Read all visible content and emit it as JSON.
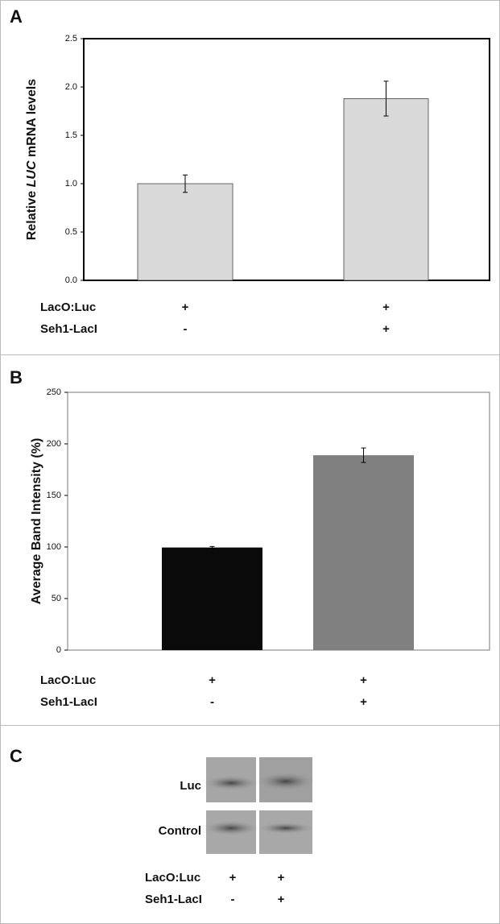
{
  "chart_data": [
    {
      "type": "bar",
      "panel": "A",
      "y_label": [
        "Relative ",
        "LUC",
        " mRNA levels"
      ],
      "values": [
        1.0,
        1.88
      ],
      "errors": [
        0.09,
        0.18
      ],
      "colors": [
        "#d9d9d9",
        "#d9d9d9"
      ],
      "ylim": [
        0,
        2.5
      ],
      "yticks": [
        {
          "value": 0,
          "label": "0.0"
        },
        0.5,
        {
          "value": 1,
          "label": "1.0"
        },
        1.5,
        {
          "value": 2,
          "label": "2.0"
        },
        2.5
      ],
      "conditions": [
        {
          "name": "LacO:Luc",
          "values": [
            "+",
            "+"
          ]
        },
        {
          "name": "Seh1-LacI",
          "values": [
            "-",
            "+"
          ]
        }
      ]
    },
    {
      "type": "bar",
      "panel": "B",
      "y_label": [
        "Average Band Intensity (%)"
      ],
      "values": [
        99.5,
        189
      ],
      "errors": [
        1,
        7
      ],
      "colors": [
        "#0a0a0a",
        "#808080"
      ],
      "ylim": [
        0,
        250
      ],
      "yticks": [
        0,
        50,
        100,
        150,
        200,
        250
      ],
      "conditions": [
        {
          "name": "LacO:Luc",
          "values": [
            "+",
            "+"
          ]
        },
        {
          "name": "Seh1-LacI",
          "values": [
            "-",
            "+"
          ]
        }
      ]
    }
  ],
  "panel_c": {
    "panel": "C",
    "rows": [
      "Luc",
      "Control"
    ],
    "conditions": [
      {
        "name": "LacO:Luc",
        "values": [
          "+",
          "+"
        ]
      },
      {
        "name": "Seh1-LacI",
        "values": [
          "-",
          "+"
        ]
      }
    ]
  }
}
